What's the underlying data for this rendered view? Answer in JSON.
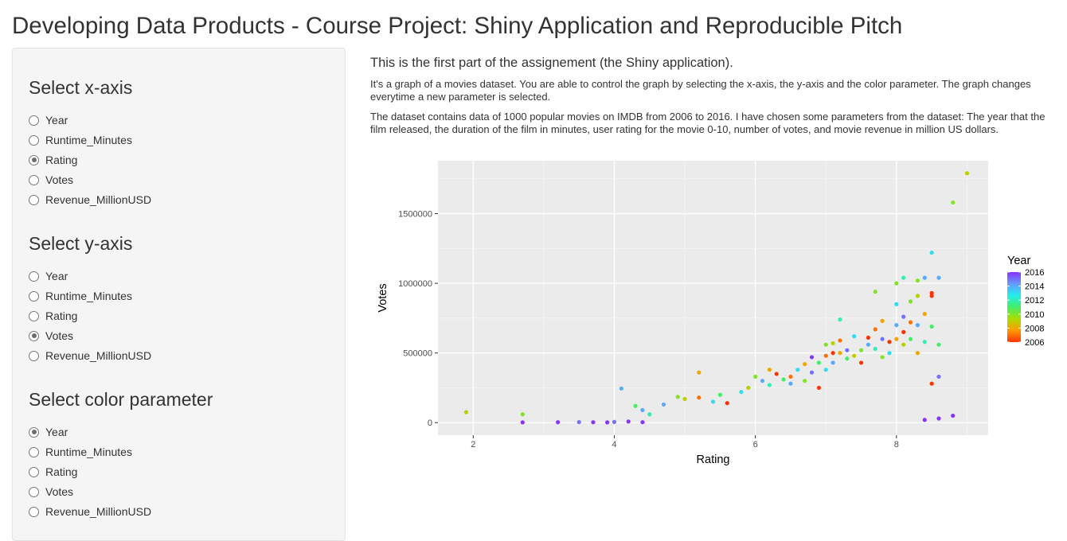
{
  "title": "Developing Data Products - Course Project: Shiny Application and Reproducible Pitch",
  "sidebar": {
    "groups": [
      {
        "label": "Select x-axis",
        "options": [
          "Year",
          "Runtime_Minutes",
          "Rating",
          "Votes",
          "Revenue_MillionUSD"
        ],
        "selected": "Rating"
      },
      {
        "label": "Select y-axis",
        "options": [
          "Year",
          "Runtime_Minutes",
          "Rating",
          "Votes",
          "Revenue_MillionUSD"
        ],
        "selected": "Votes"
      },
      {
        "label": "Select color parameter",
        "options": [
          "Year",
          "Runtime_Minutes",
          "Rating",
          "Votes",
          "Revenue_MillionUSD"
        ],
        "selected": "Year"
      }
    ]
  },
  "main": {
    "lead": "This is the first part of the assignement (the Shiny application).",
    "para1": "It's a graph of a movies dataset. You are able to control the graph by selecting the x-axis, the y-axis and the color parameter. The graph changes everytime a new parameter is selected.",
    "para2": "The dataset contains data of 1000 popular movies on IMDB from 2006 to 2016. I have chosen some parameters from the dataset: The year that the film released, the duration of the film in minutes, user rating for the movie 0-10, number of votes, and movie revenue in million US dollars."
  },
  "chart_data": {
    "type": "scatter",
    "xlabel": "Rating",
    "ylabel": "Votes",
    "xlim": [
      1.5,
      9.3
    ],
    "ylim": [
      -90000,
      1880000
    ],
    "x_ticks": [
      2,
      4,
      6,
      8
    ],
    "y_ticks": [
      0,
      500000,
      1000000,
      1500000
    ],
    "y_tick_labels": [
      "0",
      "500000",
      "1000000",
      "1500000"
    ],
    "grid": true,
    "legend": {
      "title": "Year",
      "position": "right",
      "ticks": [
        2016,
        2014,
        2012,
        2010,
        2008,
        2006
      ],
      "colors": [
        "#ff3300",
        "#ff9900",
        "#aadd00",
        "#44ee66",
        "#22eeee",
        "#6699ff",
        "#8833ff"
      ]
    },
    "points": [
      {
        "x": 1.9,
        "y": 75000,
        "c": 2009
      },
      {
        "x": 2.7,
        "y": 60000,
        "c": 2010
      },
      {
        "x": 2.7,
        "y": 2000,
        "c": 2016
      },
      {
        "x": 3.2,
        "y": 3000,
        "c": 2016
      },
      {
        "x": 3.5,
        "y": 4000,
        "c": 2015
      },
      {
        "x": 3.7,
        "y": 3000,
        "c": 2016
      },
      {
        "x": 3.9,
        "y": 2000,
        "c": 2016
      },
      {
        "x": 4.0,
        "y": 5000,
        "c": 2015
      },
      {
        "x": 4.1,
        "y": 245000,
        "c": 2014
      },
      {
        "x": 4.2,
        "y": 8000,
        "c": 2016
      },
      {
        "x": 4.3,
        "y": 120000,
        "c": 2011
      },
      {
        "x": 4.4,
        "y": 90000,
        "c": 2014
      },
      {
        "x": 4.4,
        "y": 3000,
        "c": 2016
      },
      {
        "x": 4.5,
        "y": 60000,
        "c": 2012
      },
      {
        "x": 4.7,
        "y": 130000,
        "c": 2014
      },
      {
        "x": 4.9,
        "y": 185000,
        "c": 2010
      },
      {
        "x": 5.0,
        "y": 170000,
        "c": 2009
      },
      {
        "x": 5.2,
        "y": 360000,
        "c": 2008
      },
      {
        "x": 5.2,
        "y": 180000,
        "c": 2007
      },
      {
        "x": 5.4,
        "y": 150000,
        "c": 2013
      },
      {
        "x": 5.5,
        "y": 200000,
        "c": 2011
      },
      {
        "x": 5.6,
        "y": 140000,
        "c": 2006
      },
      {
        "x": 5.8,
        "y": 220000,
        "c": 2013
      },
      {
        "x": 5.9,
        "y": 250000,
        "c": 2009
      },
      {
        "x": 6.0,
        "y": 330000,
        "c": 2010
      },
      {
        "x": 6.1,
        "y": 300000,
        "c": 2014
      },
      {
        "x": 6.2,
        "y": 270000,
        "c": 2012
      },
      {
        "x": 6.2,
        "y": 380000,
        "c": 2008
      },
      {
        "x": 6.3,
        "y": 350000,
        "c": 2006
      },
      {
        "x": 6.4,
        "y": 310000,
        "c": 2011
      },
      {
        "x": 6.5,
        "y": 330000,
        "c": 2007
      },
      {
        "x": 6.5,
        "y": 280000,
        "c": 2014
      },
      {
        "x": 6.6,
        "y": 380000,
        "c": 2013
      },
      {
        "x": 6.7,
        "y": 420000,
        "c": 2008
      },
      {
        "x": 6.7,
        "y": 300000,
        "c": 2010
      },
      {
        "x": 6.8,
        "y": 360000,
        "c": 2015
      },
      {
        "x": 6.8,
        "y": 470000,
        "c": 2016
      },
      {
        "x": 6.9,
        "y": 430000,
        "c": 2011
      },
      {
        "x": 6.9,
        "y": 250000,
        "c": 2006
      },
      {
        "x": 7.0,
        "y": 560000,
        "c": 2010
      },
      {
        "x": 7.0,
        "y": 480000,
        "c": 2007
      },
      {
        "x": 7.0,
        "y": 380000,
        "c": 2013
      },
      {
        "x": 7.1,
        "y": 570000,
        "c": 2009
      },
      {
        "x": 7.1,
        "y": 500000,
        "c": 2006
      },
      {
        "x": 7.1,
        "y": 430000,
        "c": 2014
      },
      {
        "x": 7.2,
        "y": 740000,
        "c": 2012
      },
      {
        "x": 7.2,
        "y": 590000,
        "c": 2007
      },
      {
        "x": 7.2,
        "y": 500000,
        "c": 2008
      },
      {
        "x": 7.3,
        "y": 520000,
        "c": 2015
      },
      {
        "x": 7.3,
        "y": 460000,
        "c": 2011
      },
      {
        "x": 7.4,
        "y": 620000,
        "c": 2013
      },
      {
        "x": 7.4,
        "y": 480000,
        "c": 2009
      },
      {
        "x": 7.5,
        "y": 520000,
        "c": 2010
      },
      {
        "x": 7.5,
        "y": 430000,
        "c": 2006
      },
      {
        "x": 7.6,
        "y": 560000,
        "c": 2014
      },
      {
        "x": 7.6,
        "y": 610000,
        "c": 2006
      },
      {
        "x": 7.7,
        "y": 670000,
        "c": 2007
      },
      {
        "x": 7.7,
        "y": 530000,
        "c": 2012
      },
      {
        "x": 7.7,
        "y": 940000,
        "c": 2010
      },
      {
        "x": 7.8,
        "y": 730000,
        "c": 2008
      },
      {
        "x": 7.8,
        "y": 600000,
        "c": 2015
      },
      {
        "x": 7.8,
        "y": 470000,
        "c": 2010
      },
      {
        "x": 7.9,
        "y": 580000,
        "c": 2006
      },
      {
        "x": 7.9,
        "y": 500000,
        "c": 2013
      },
      {
        "x": 8.0,
        "y": 1000000,
        "c": 2010
      },
      {
        "x": 8.0,
        "y": 850000,
        "c": 2013
      },
      {
        "x": 8.0,
        "y": 700000,
        "c": 2014
      },
      {
        "x": 8.0,
        "y": 600000,
        "c": 2008
      },
      {
        "x": 8.1,
        "y": 1040000,
        "c": 2012
      },
      {
        "x": 8.1,
        "y": 760000,
        "c": 2015
      },
      {
        "x": 8.1,
        "y": 650000,
        "c": 2006
      },
      {
        "x": 8.1,
        "y": 560000,
        "c": 2009
      },
      {
        "x": 8.2,
        "y": 870000,
        "c": 2010
      },
      {
        "x": 8.2,
        "y": 720000,
        "c": 2007
      },
      {
        "x": 8.2,
        "y": 600000,
        "c": 2011
      },
      {
        "x": 8.3,
        "y": 1020000,
        "c": 2010
      },
      {
        "x": 8.3,
        "y": 910000,
        "c": 2009
      },
      {
        "x": 8.3,
        "y": 700000,
        "c": 2014
      },
      {
        "x": 8.3,
        "y": 500000,
        "c": 2008
      },
      {
        "x": 8.4,
        "y": 1040000,
        "c": 2014
      },
      {
        "x": 8.4,
        "y": 780000,
        "c": 2008
      },
      {
        "x": 8.4,
        "y": 580000,
        "c": 2012
      },
      {
        "x": 8.5,
        "y": 1220000,
        "c": 2013
      },
      {
        "x": 8.5,
        "y": 930000,
        "c": 2006
      },
      {
        "x": 8.5,
        "y": 910000,
        "c": 2006
      },
      {
        "x": 8.5,
        "y": 690000,
        "c": 2011
      },
      {
        "x": 8.5,
        "y": 280000,
        "c": 2006
      },
      {
        "x": 8.6,
        "y": 1040000,
        "c": 2014
      },
      {
        "x": 8.6,
        "y": 560000,
        "c": 2011
      },
      {
        "x": 8.6,
        "y": 330000,
        "c": 2015
      },
      {
        "x": 8.8,
        "y": 1580000,
        "c": 2010
      },
      {
        "x": 9.0,
        "y": 1790000,
        "c": 2009
      },
      {
        "x": 8.8,
        "y": 50000,
        "c": 2016
      },
      {
        "x": 8.6,
        "y": 30000,
        "c": 2016
      },
      {
        "x": 8.4,
        "y": 20000,
        "c": 2016
      }
    ]
  }
}
